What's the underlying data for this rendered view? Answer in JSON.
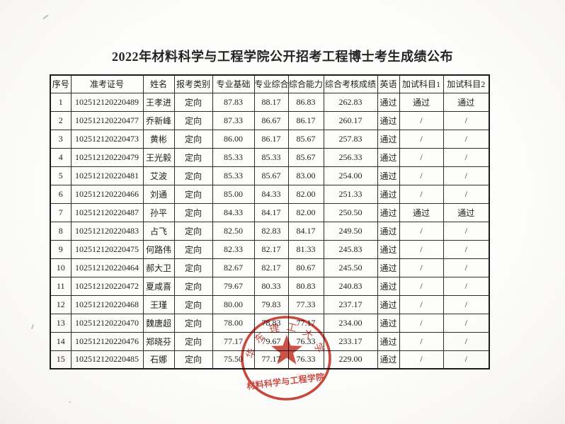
{
  "title": "2022年材料科学与工程学院公开招考工程博士考生成绩公布",
  "table": {
    "columns": [
      "序号",
      "准考证号",
      "姓名",
      "报考类别",
      "专业基础",
      "专业综合",
      "综合能力",
      "综合考核成绩",
      "英语",
      "加试科目1",
      "加试科目2"
    ],
    "rows": [
      [
        "1",
        "102512120220489",
        "王孝进",
        "定向",
        "87.83",
        "88.17",
        "86.83",
        "262.83",
        "通过",
        "通过",
        "通过"
      ],
      [
        "2",
        "102512120220477",
        "乔新峰",
        "定向",
        "87.33",
        "86.67",
        "86.17",
        "260.17",
        "通过",
        "/",
        "/"
      ],
      [
        "3",
        "102512120220473",
        "黄彬",
        "定向",
        "86.00",
        "86.17",
        "85.67",
        "257.83",
        "通过",
        "/",
        "/"
      ],
      [
        "4",
        "102512120220479",
        "王光毅",
        "定向",
        "85.33",
        "85.33",
        "85.67",
        "256.33",
        "通过",
        "/",
        "/"
      ],
      [
        "5",
        "102512120220481",
        "艾波",
        "定向",
        "85.33",
        "85.67",
        "83.00",
        "254.00",
        "通过",
        "/",
        "/"
      ],
      [
        "6",
        "102512120220466",
        "刘通",
        "定向",
        "85.00",
        "84.33",
        "82.00",
        "251.33",
        "通过",
        "/",
        "/"
      ],
      [
        "7",
        "102512120220487",
        "孙平",
        "定向",
        "84.33",
        "84.17",
        "82.00",
        "250.50",
        "通过",
        "通过",
        "通过"
      ],
      [
        "8",
        "102512120220483",
        "占飞",
        "定向",
        "82.50",
        "82.83",
        "84.17",
        "249.50",
        "通过",
        "/",
        "/"
      ],
      [
        "9",
        "102512120220475",
        "何路伟",
        "定向",
        "82.33",
        "82.17",
        "81.33",
        "245.83",
        "通过",
        "/",
        "/"
      ],
      [
        "10",
        "102512120220464",
        "郝大卫",
        "定向",
        "82.67",
        "82.17",
        "80.67",
        "245.50",
        "通过",
        "/",
        "/"
      ],
      [
        "11",
        "102512120220472",
        "夏咸喜",
        "定向",
        "79.67",
        "80.33",
        "80.83",
        "240.83",
        "通过",
        "/",
        "/"
      ],
      [
        "12",
        "102512120220468",
        "王瑾",
        "定向",
        "80.00",
        "79.83",
        "77.33",
        "237.17",
        "通过",
        "/",
        "/"
      ],
      [
        "13",
        "102512120220470",
        "魏唐超",
        "定向",
        "78.00",
        "78.83",
        "77.17",
        "234.00",
        "通过",
        "/",
        "/"
      ],
      [
        "14",
        "102512120220476",
        "郑晓芬",
        "定向",
        "77.17",
        "79.67",
        "76.33",
        "233.17",
        "通过",
        "/",
        "/"
      ],
      [
        "15",
        "102512120220485",
        "石娜",
        "定向",
        "75.50",
        "77.17",
        "76.33",
        "229.00",
        "通过",
        "/",
        "/"
      ]
    ]
  },
  "seal": {
    "arc_text": "华东理工大学",
    "department_text": "材料科学与工程学院",
    "color": "#c6352a"
  }
}
